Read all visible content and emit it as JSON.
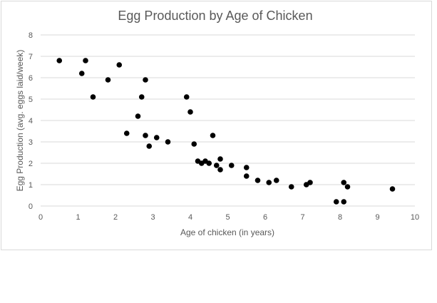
{
  "chart_data": {
    "type": "scatter",
    "title": "Egg Production by Age of Chicken",
    "xlabel": "Age of chicken (in years)",
    "ylabel": "Egg Production (avg. eggs laid/week)",
    "xlim": [
      0,
      10
    ],
    "ylim": [
      0,
      8
    ],
    "xticks": [
      "0",
      "1",
      "2",
      "3",
      "4",
      "5",
      "6",
      "7",
      "8",
      "9",
      "10"
    ],
    "yticks": [
      "0",
      "1",
      "2",
      "3",
      "4",
      "5",
      "6",
      "7",
      "8"
    ],
    "grid": "horizontal",
    "point_color": "#000000",
    "points": [
      [
        0.5,
        6.8
      ],
      [
        1.1,
        6.2
      ],
      [
        1.2,
        6.8
      ],
      [
        1.4,
        5.1
      ],
      [
        1.8,
        5.9
      ],
      [
        2.1,
        6.6
      ],
      [
        2.3,
        3.4
      ],
      [
        2.6,
        4.2
      ],
      [
        2.7,
        5.1
      ],
      [
        2.8,
        5.9
      ],
      [
        2.8,
        3.3
      ],
      [
        2.9,
        2.8
      ],
      [
        3.1,
        3.2
      ],
      [
        3.4,
        3.0
      ],
      [
        3.9,
        5.1
      ],
      [
        4.0,
        4.4
      ],
      [
        4.1,
        2.9
      ],
      [
        4.2,
        2.1
      ],
      [
        4.3,
        2.0
      ],
      [
        4.4,
        2.1
      ],
      [
        4.5,
        2.0
      ],
      [
        4.6,
        3.3
      ],
      [
        4.7,
        1.9
      ],
      [
        4.8,
        2.2
      ],
      [
        4.8,
        1.7
      ],
      [
        5.1,
        1.9
      ],
      [
        5.5,
        1.8
      ],
      [
        5.5,
        1.4
      ],
      [
        5.8,
        1.2
      ],
      [
        6.1,
        1.1
      ],
      [
        6.3,
        1.2
      ],
      [
        6.7,
        0.9
      ],
      [
        7.1,
        1.0
      ],
      [
        7.2,
        1.1
      ],
      [
        7.9,
        0.2
      ],
      [
        8.1,
        0.2
      ],
      [
        8.1,
        1.1
      ],
      [
        8.2,
        0.9
      ],
      [
        9.4,
        0.8
      ]
    ]
  }
}
